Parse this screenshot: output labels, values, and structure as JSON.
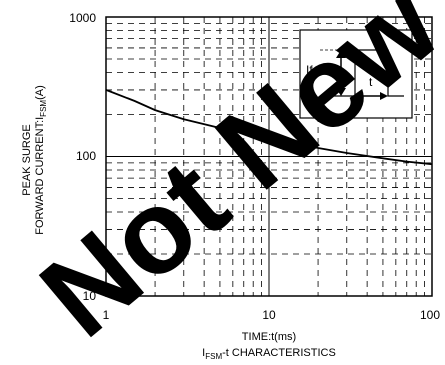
{
  "chart_data": {
    "type": "line",
    "series": [
      {
        "x": [
          1,
          1.5,
          2,
          3,
          5,
          7,
          10,
          15,
          20,
          30,
          50,
          70,
          100
        ],
        "y": [
          300,
          250,
          215,
          185,
          160,
          148,
          135,
          123,
          115,
          106,
          97,
          92,
          88
        ]
      }
    ],
    "xscale": "log",
    "yscale": "log",
    "xlim": [
      1,
      100
    ],
    "ylim": [
      10,
      1000
    ],
    "xticks": [
      "1",
      "10",
      "100"
    ],
    "yticks": [
      "1000",
      "100",
      "10"
    ],
    "xlabel": "TIME:t(ms)",
    "ylabel": {
      "line1": "PEAK SURGE",
      "line2_main": "FORWARD CURRENT:I",
      "line2_sub": "FSM",
      "line2_unit": "(A)"
    },
    "caption": {
      "main": "I",
      "sub": "FSM",
      "rest": "-t CHARACTERISTICS"
    },
    "inset": {
      "ifsm_label": "Ifsm",
      "t_label": "t"
    },
    "grid": true,
    "grid_style": "dashed",
    "watermark": {
      "text": "Not New",
      "color": "#000000"
    }
  }
}
